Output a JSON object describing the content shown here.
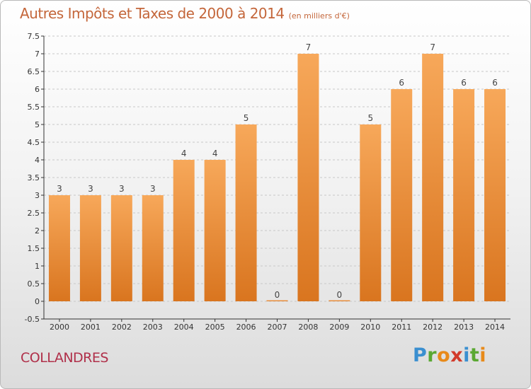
{
  "header": {
    "title": "Autres Impôts et Taxes de 2000 à 2014",
    "unit": "(en milliers d'€)"
  },
  "footer": {
    "commune": "COLLANDRES",
    "logo": {
      "letters": [
        "P",
        "r",
        "o",
        "x",
        "i",
        "t",
        "i"
      ],
      "colors": [
        "#3a8fd0",
        "#5aa832",
        "#e88a1a",
        "#d23a2a",
        "#3a8fd0",
        "#5aa832",
        "#e88a1a"
      ]
    }
  },
  "colors": {
    "bar_light": "#f7a85a",
    "bar_dark": "#d9751f",
    "grid": "#c8c8c8",
    "axis": "#333333"
  },
  "chart_data": {
    "type": "bar",
    "categories": [
      "2000",
      "2001",
      "2002",
      "2003",
      "2004",
      "2005",
      "2006",
      "2007",
      "2008",
      "2009",
      "2010",
      "2011",
      "2012",
      "2013",
      "2014"
    ],
    "values": [
      3,
      3,
      3,
      3,
      4,
      4,
      5,
      0,
      7,
      0,
      5,
      6,
      7,
      6,
      6
    ],
    "data_labels": [
      "3",
      "3",
      "3",
      "3",
      "4",
      "4",
      "5",
      "0",
      "7",
      "0",
      "5",
      "6",
      "7",
      "6",
      "6"
    ],
    "y_ticks": [
      "-0.5",
      "0",
      "0.5",
      "1",
      "1.5",
      "2",
      "2.5",
      "3",
      "3.5",
      "4",
      "4.5",
      "5",
      "5.5",
      "6",
      "6.5",
      "7",
      "7.5"
    ],
    "ylim": [
      -0.5,
      7.5
    ],
    "grid": true,
    "title": "Autres Impôts et Taxes de 2000 à 2014",
    "xlabel": "",
    "ylabel": ""
  }
}
